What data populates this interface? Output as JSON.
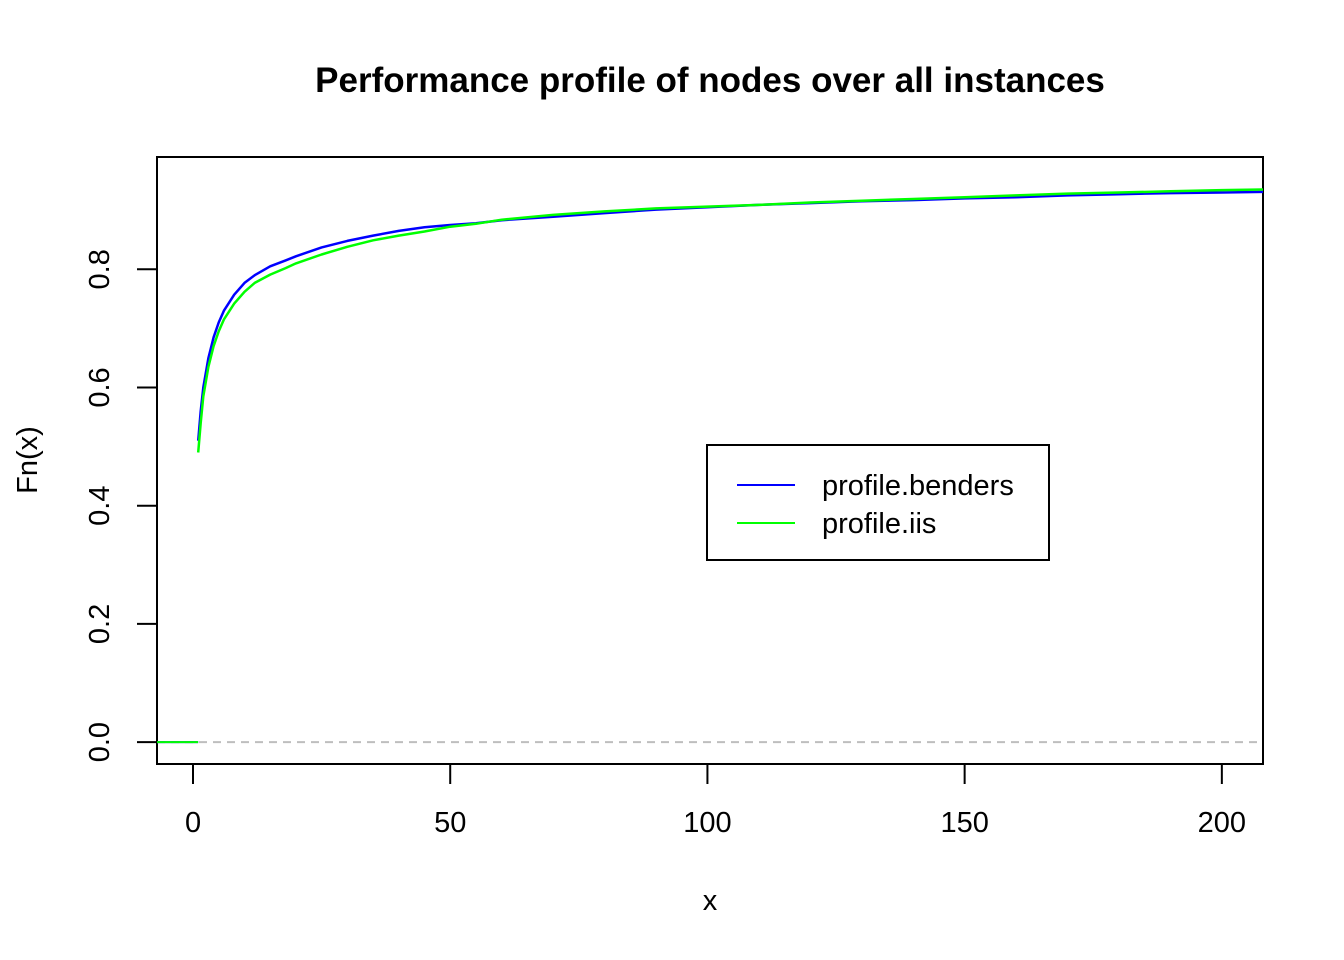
{
  "chart_data": {
    "type": "line",
    "title": "Performance profile of nodes over all instances",
    "xlabel": "x",
    "ylabel": "Fn(x)",
    "xlim": [
      -7,
      208
    ],
    "ylim": [
      -0.037,
      0.99
    ],
    "xticks": [
      0,
      50,
      100,
      150,
      200
    ],
    "yticks": [
      0.0,
      0.2,
      0.4,
      0.6,
      0.8
    ],
    "ytick_labels": [
      "0.0",
      "0.2",
      "0.4",
      "0.6",
      "0.8"
    ],
    "xtick_labels": [
      "0",
      "50",
      "100",
      "150",
      "200"
    ],
    "grid": false,
    "legend_position": "center-right",
    "reference_line": {
      "y": 0.0,
      "style": "dashed",
      "color": "#bebebe"
    },
    "series": [
      {
        "name": "profile.benders",
        "color": "#0000ff",
        "x": [
          1,
          1.5,
          2,
          3,
          4,
          5,
          6,
          8,
          10,
          12,
          15,
          18,
          20,
          25,
          30,
          35,
          40,
          45,
          50,
          55,
          60,
          70,
          80,
          90,
          100,
          110,
          120,
          130,
          140,
          150,
          160,
          170,
          180,
          190,
          200,
          208
        ],
        "y": [
          0.51,
          0.56,
          0.6,
          0.65,
          0.685,
          0.71,
          0.73,
          0.757,
          0.777,
          0.79,
          0.805,
          0.815,
          0.822,
          0.837,
          0.848,
          0.857,
          0.865,
          0.871,
          0.875,
          0.878,
          0.883,
          0.889,
          0.895,
          0.901,
          0.905,
          0.909,
          0.912,
          0.915,
          0.917,
          0.92,
          0.922,
          0.925,
          0.927,
          0.929,
          0.93,
          0.931
        ]
      },
      {
        "name": "profile.iis",
        "color": "#00ff00",
        "x": [
          1,
          1.5,
          2,
          3,
          4,
          5,
          6,
          8,
          10,
          12,
          15,
          18,
          20,
          25,
          30,
          35,
          40,
          45,
          50,
          55,
          60,
          70,
          80,
          90,
          100,
          110,
          120,
          130,
          140,
          150,
          160,
          170,
          180,
          190,
          200,
          208
        ],
        "y": [
          0.49,
          0.54,
          0.585,
          0.635,
          0.67,
          0.695,
          0.715,
          0.742,
          0.762,
          0.777,
          0.791,
          0.802,
          0.81,
          0.825,
          0.838,
          0.849,
          0.857,
          0.864,
          0.872,
          0.877,
          0.884,
          0.892,
          0.898,
          0.903,
          0.906,
          0.909,
          0.913,
          0.916,
          0.919,
          0.922,
          0.925,
          0.928,
          0.93,
          0.932,
          0.934,
          0.935
        ]
      }
    ]
  }
}
